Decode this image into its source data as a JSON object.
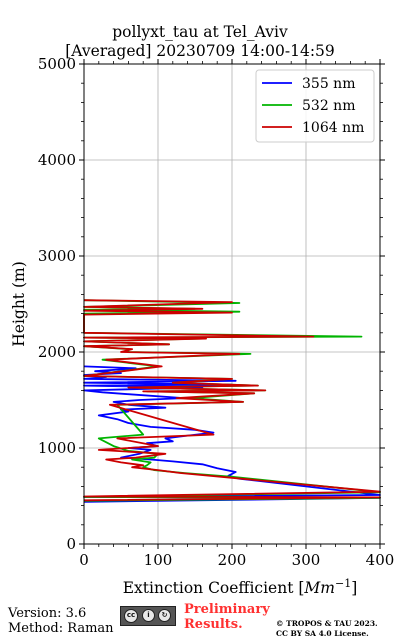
{
  "title": {
    "line1": "pollyxt_tau at Tel_Aviv",
    "line2": "[Averaged] 20230709 14:00-14:59"
  },
  "footer": {
    "version": "Version: 3.6",
    "method": "Method: Raman",
    "preliminary_line1": "Preliminary",
    "preliminary_line2": "Results.",
    "copyright_line1": "© TROPOS & TAU 2023.",
    "copyright_line2": "CC BY SA 4.0 License.",
    "license_badge": "cc-by-sa-icon",
    "preliminary_color": "#ff3030"
  },
  "chart_data": {
    "type": "line",
    "title": "pollyxt_tau at Tel_Aviv [Averaged] 20230709 14:00-14:59",
    "xlabel": "Extinction Coefficient [Mm^-1]",
    "ylabel": "Height (m)",
    "xlim": [
      0,
      400
    ],
    "ylim": [
      0,
      5000
    ],
    "xticks": [
      0,
      100,
      200,
      300,
      400
    ],
    "yticks": [
      0,
      1000,
      2000,
      3000,
      4000,
      5000
    ],
    "grid": true,
    "legend_position": "top-right",
    "series": [
      {
        "name": "355 nm",
        "color": "#0000ff",
        "x": [
          0,
          400,
          0,
          400,
          210,
          195,
          205,
          180,
          160,
          120,
          90,
          50,
          75,
          90,
          60,
          100,
          85,
          120,
          110,
          130,
          175,
          150,
          90,
          60,
          45,
          20,
          60,
          50,
          110,
          60,
          40,
          75,
          135,
          60,
          25,
          0,
          160,
          0,
          200,
          0,
          205,
          0,
          30,
          0,
          50,
          15,
          70,
          0
        ],
        "y": [
          440,
          480,
          490,
          510,
          680,
          710,
          750,
          790,
          830,
          860,
          880,
          900,
          940,
          980,
          1000,
          1020,
          1050,
          1070,
          1100,
          1120,
          1160,
          1190,
          1220,
          1260,
          1300,
          1340,
          1380,
          1400,
          1420,
          1450,
          1480,
          1500,
          1520,
          1560,
          1580,
          1600,
          1630,
          1650,
          1660,
          1680,
          1700,
          1720,
          1740,
          1760,
          1780,
          1800,
          1830,
          1850
        ]
      },
      {
        "name": "532 nm",
        "color": "#00b400",
        "x": [
          0,
          400,
          0,
          400,
          200,
          135,
          95,
          80,
          85,
          90,
          65,
          95,
          100,
          60,
          40,
          20,
          80,
          45,
          215,
          145,
          230,
          85,
          245,
          60,
          235,
          120,
          200,
          0,
          100,
          25,
          225,
          60,
          60,
          0,
          115,
          0,
          160,
          0,
          375,
          0,
          0,
          210,
          0,
          150,
          0,
          210,
          0
        ],
        "y": [
          450,
          480,
          490,
          540,
          700,
          740,
          770,
          800,
          820,
          850,
          880,
          900,
          940,
          970,
          1020,
          1100,
          1140,
          1450,
          1480,
          1520,
          1570,
          1590,
          1600,
          1630,
          1650,
          1680,
          1720,
          1750,
          1850,
          1920,
          1980,
          2000,
          2030,
          2060,
          2080,
          2110,
          2140,
          2150,
          2160,
          2200,
          2400,
          2420,
          2440,
          2450,
          2470,
          2510,
          2540
        ]
      },
      {
        "name": "1064 nm",
        "color": "#cc0000",
        "x": [
          0,
          400,
          0,
          400,
          200,
          130,
          100,
          65,
          80,
          50,
          30,
          70,
          110,
          20,
          100,
          45,
          175,
          35,
          215,
          125,
          230,
          80,
          245,
          60,
          235,
          120,
          200,
          0,
          105,
          30,
          210,
          50,
          65,
          0,
          115,
          0,
          165,
          0,
          310,
          0,
          0,
          200,
          0,
          160,
          0,
          200,
          0
        ],
        "y": [
          455,
          485,
          495,
          545,
          690,
          740,
          770,
          800,
          820,
          850,
          880,
          900,
          940,
          980,
          1020,
          1100,
          1140,
          1450,
          1480,
          1520,
          1570,
          1590,
          1600,
          1630,
          1650,
          1680,
          1720,
          1750,
          1850,
          1920,
          1980,
          2000,
          2030,
          2060,
          2080,
          2110,
          2140,
          2150,
          2160,
          2200,
          2390,
          2410,
          2430,
          2450,
          2470,
          2520,
          2540
        ]
      }
    ]
  }
}
